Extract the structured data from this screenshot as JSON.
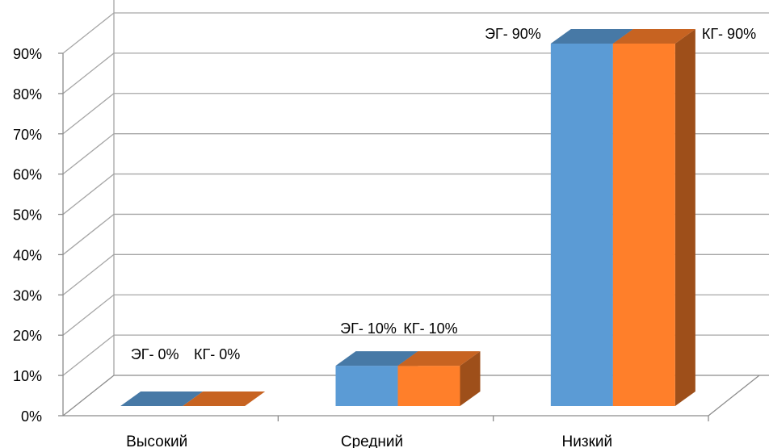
{
  "chart_data": {
    "type": "bar",
    "categories": [
      "Высокий",
      "Средний",
      "Низкий"
    ],
    "series": [
      {
        "name": "ЭГ",
        "values": [
          0,
          10,
          90
        ],
        "labels": [
          "ЭГ- 0%",
          "ЭГ- 10%",
          "ЭГ- 90%"
        ],
        "color": "#5B9BD5"
      },
      {
        "name": "КГ",
        "values": [
          0,
          10,
          90
        ],
        "labels": [
          "КГ- 0%",
          "КГ- 10%",
          "КГ- 90%"
        ],
        "color": "#FF7F2A"
      }
    ],
    "ylim": [
      0,
      90
    ],
    "yticks": [
      "0%",
      "10%",
      "20%",
      "30%",
      "40%",
      "50%",
      "60%",
      "70%",
      "80%",
      "90%"
    ],
    "grid": true,
    "legend": "none",
    "style": "3d-column"
  }
}
